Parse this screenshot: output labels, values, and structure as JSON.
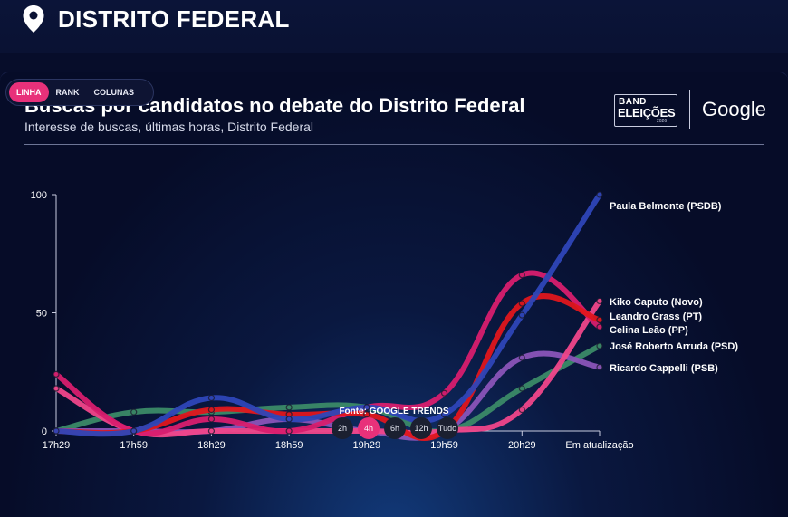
{
  "header": {
    "region": "DISTRITO FEDERAL",
    "icon": "location-pin-icon"
  },
  "tabs": [
    {
      "label": "LINHA",
      "active": true
    },
    {
      "label": "RANK",
      "active": false
    },
    {
      "label": "COLUNAS",
      "active": false
    }
  ],
  "logos": {
    "band_top": "BAND",
    "band_main": "ELEIÇÕES",
    "band_year": "2026",
    "google": "Google"
  },
  "source": "Fonte: GOOGLE TRENDS",
  "time_ranges": [
    {
      "label": "2h",
      "active": false
    },
    {
      "label": "4h",
      "active": true
    },
    {
      "label": "6h",
      "active": false
    },
    {
      "label": "12h",
      "active": false
    },
    {
      "label": "Tudo",
      "active": false
    }
  ],
  "chart_data": {
    "type": "line",
    "title": "Buscas por candidatos no debate do Distrito Federal",
    "subtitle": "Interesse de buscas, últimas horas, Distrito Federal",
    "categories": [
      "17h29",
      "17h59",
      "18h29",
      "18h59",
      "19h29",
      "19h59",
      "20h29",
      "Em atualização"
    ],
    "ylim": [
      0,
      100
    ],
    "yticks": [
      0,
      50,
      100
    ],
    "grid": false,
    "legend_position": "right, at line ends",
    "series": [
      {
        "name": "Paula Belmonte (PSDB)",
        "color": "#2e46b8",
        "values": [
          0,
          0,
          14,
          5,
          10,
          7,
          49,
          100
        ]
      },
      {
        "name": "Kiko Caputo (Novo)",
        "color": "#f0468a",
        "values": [
          18,
          0,
          0,
          0,
          0,
          0,
          9,
          55
        ]
      },
      {
        "name": "Leandro Grass (PT)",
        "color": "#e0161c",
        "values": [
          0,
          0,
          9,
          7,
          7,
          0,
          54,
          47
        ]
      },
      {
        "name": "Celina Leão (PP)",
        "color": "#d81e6e",
        "values": [
          24,
          0,
          5,
          0,
          10,
          16,
          66,
          44
        ]
      },
      {
        "name": "José Roberto Arruda (PSD)",
        "color": "#3b8a67",
        "values": [
          0,
          8,
          8,
          10,
          10,
          0,
          18,
          36
        ]
      },
      {
        "name": "Ricardo Cappelli (PSB)",
        "color": "#8a54b8",
        "values": [
          0,
          0,
          0,
          5,
          0,
          0,
          31,
          27
        ]
      }
    ]
  }
}
